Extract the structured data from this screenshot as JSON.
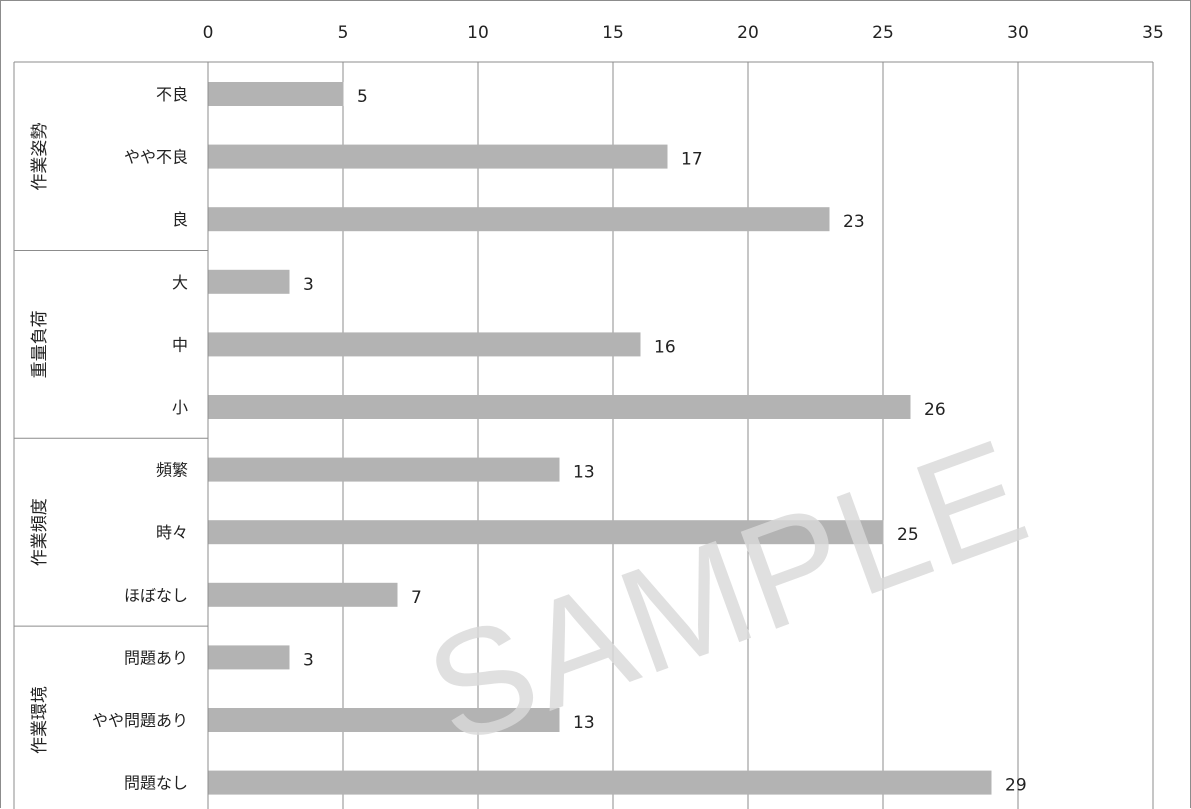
{
  "chart_data": {
    "type": "bar",
    "orientation": "horizontal",
    "x_ticks": [
      0,
      5,
      10,
      15,
      20,
      25,
      30,
      35
    ],
    "xlim": [
      0,
      35
    ],
    "grid": true,
    "axis_position": "top",
    "groups": [
      {
        "name": "作業姿勢",
        "categories": [
          "不良",
          "やや不良",
          "良"
        ],
        "values": [
          5,
          17,
          23
        ]
      },
      {
        "name": "重量負荷",
        "categories": [
          "大",
          "中",
          "小"
        ],
        "values": [
          3,
          16,
          26
        ]
      },
      {
        "name": "作業頻度",
        "categories": [
          "頻繁",
          "時々",
          "ほぼなし"
        ],
        "values": [
          13,
          25,
          7
        ]
      },
      {
        "name": "作業環境",
        "categories": [
          "問題あり",
          "やや問題あり",
          "問題なし"
        ],
        "values": [
          3,
          13,
          29
        ]
      }
    ],
    "bar_color": "#b3b3b3",
    "grid_color": "#8c8c8c",
    "watermark": "SAMPLE"
  }
}
